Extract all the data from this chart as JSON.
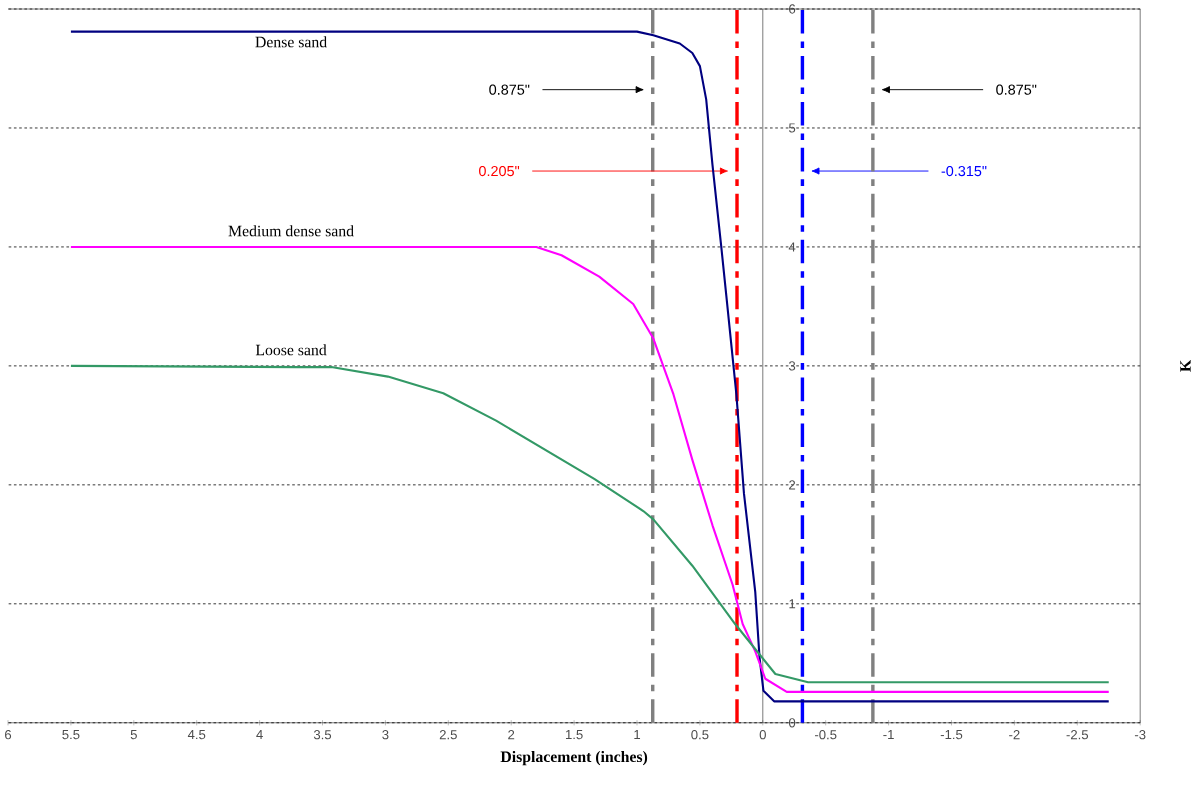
{
  "chart_data": {
    "type": "line",
    "xlabel": "Displacement (inches)",
    "ylabel": "K",
    "xlim": [
      6,
      -3
    ],
    "ylim": [
      0,
      6
    ],
    "xticks": [
      6,
      5.5,
      5,
      4.5,
      4,
      3.5,
      3,
      2.5,
      2,
      1.5,
      1,
      0.5,
      0,
      -0.5,
      -1,
      -1.5,
      -2,
      -2.5,
      -3
    ],
    "yticks": [
      0,
      1,
      2,
      3,
      4,
      5,
      6
    ],
    "grid": "y",
    "legend": false,
    "marker": "none",
    "line_style": "solid",
    "series": [
      {
        "name": "Dense sand",
        "color": "#000080",
        "x": [
          5.5,
          1.34,
          1.0,
          0.87,
          0.66,
          0.56,
          0.5,
          0.45,
          0.4,
          0.33,
          0.29,
          0.21,
          0.15,
          0.06,
          0.026,
          -0.005,
          -0.09,
          -2.75
        ],
        "values": [
          5.81,
          5.81,
          5.81,
          5.78,
          5.71,
          5.63,
          5.52,
          5.24,
          4.69,
          4.0,
          3.59,
          2.76,
          1.93,
          1.1,
          0.55,
          0.27,
          0.18,
          0.18
        ]
      },
      {
        "name": "Medium dense sand",
        "color": "#ff00ff",
        "x": [
          5.5,
          1.8,
          1.6,
          1.3,
          1.03,
          0.87,
          0.71,
          0.56,
          0.4,
          0.24,
          0.16,
          0.06,
          -0.02,
          -0.19,
          -2.75
        ],
        "values": [
          4.0,
          4.0,
          3.93,
          3.75,
          3.52,
          3.23,
          2.76,
          2.21,
          1.66,
          1.16,
          0.83,
          0.6,
          0.37,
          0.26,
          0.26
        ]
      },
      {
        "name": "Loose sand",
        "color": "#339966",
        "x": [
          5.5,
          3.7,
          3.43,
          2.98,
          2.54,
          2.12,
          1.34,
          0.95,
          0.87,
          0.56,
          0.22,
          0.03,
          -0.1,
          -0.36,
          -2.75
        ],
        "values": [
          3.0,
          2.99,
          2.99,
          2.91,
          2.77,
          2.54,
          2.05,
          1.78,
          1.71,
          1.32,
          0.83,
          0.58,
          0.41,
          0.34,
          0.34
        ]
      }
    ],
    "ref_lines": [
      {
        "axis": "x",
        "value": 0.875,
        "color": "#808080",
        "line_style": "dashdot"
      },
      {
        "axis": "x",
        "value": 0.205,
        "color": "#ff0000",
        "line_style": "dashdot",
        "label": "0.205\""
      },
      {
        "axis": "x",
        "value": -0.315,
        "color": "#0000ff",
        "line_style": "dashdot",
        "label": "-0.315\""
      },
      {
        "axis": "x",
        "value": -0.875,
        "color": "#808080",
        "line_style": "dashdot"
      }
    ],
    "annotations": [
      "0.875\"",
      "0.875\""
    ]
  }
}
